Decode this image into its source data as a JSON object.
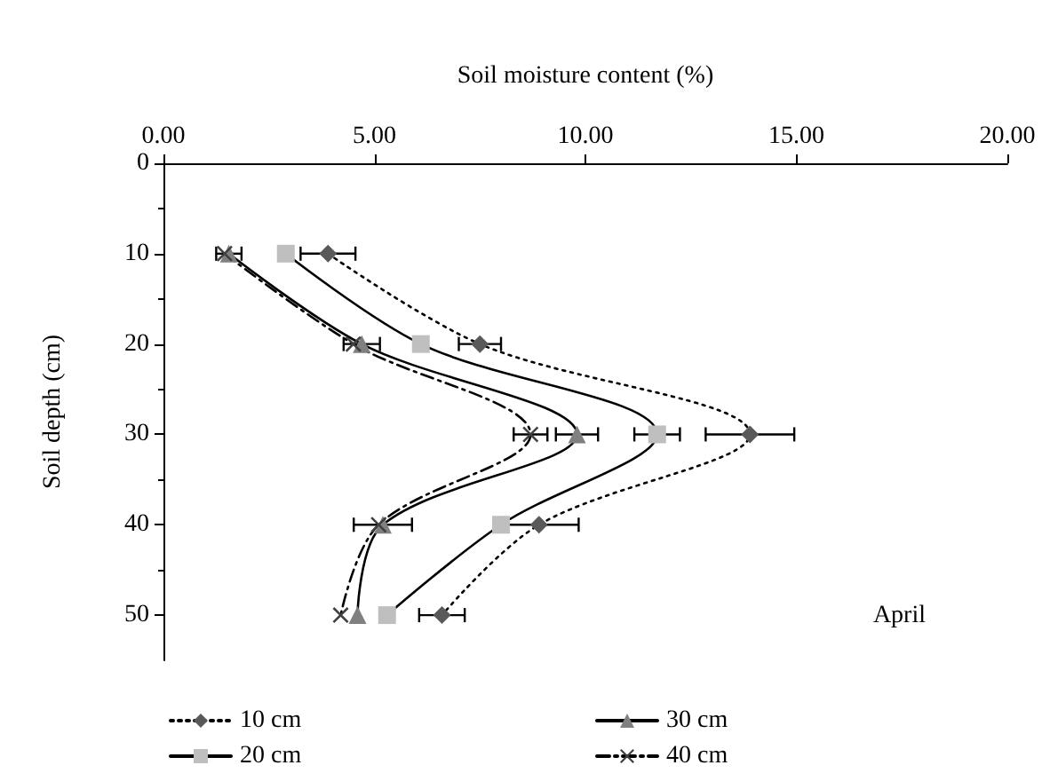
{
  "chart_data": {
    "type": "line",
    "xlabel": "Soil moisture content (%)",
    "ylabel": "Soil depth (cm)",
    "xlim": [
      0,
      20
    ],
    "xticks": [
      {
        "value": 0,
        "label": "0.00"
      },
      {
        "value": 5,
        "label": "5.00"
      },
      {
        "value": 10,
        "label": "10.00"
      },
      {
        "value": 15,
        "label": "15.00"
      },
      {
        "value": 20,
        "label": "20.00"
      }
    ],
    "ylim": [
      55,
      0
    ],
    "yticks": [
      0,
      10,
      20,
      30,
      40,
      50
    ],
    "grid": false,
    "legend": "bottom",
    "annotations": [
      "April"
    ],
    "series": [
      {
        "name": "10 cm",
        "color": "#595959",
        "marker": "diamond",
        "line_style": "dotted",
        "x": [
          3.9,
          7.5,
          13.9,
          8.9,
          6.6
        ],
        "values": [
          10,
          20,
          30,
          40,
          50
        ],
        "xerrors": [
          0.65,
          0.5,
          1.05,
          0.94,
          0.54
        ]
      },
      {
        "name": "20 cm",
        "color": "#bfbfbf",
        "marker": "square",
        "line_style": "solid",
        "x": [
          2.9,
          6.1,
          11.7,
          8.0,
          5.3
        ],
        "values": [
          10,
          20,
          30,
          40,
          50
        ],
        "xerrors": [
          null,
          null,
          0.54,
          null,
          null
        ]
      },
      {
        "name": "30 cm",
        "color": "#808080",
        "marker": "triangle",
        "line_style": "solid",
        "x": [
          1.55,
          4.7,
          9.8,
          5.2,
          4.6
        ],
        "values": [
          10,
          20,
          30,
          40,
          50
        ],
        "xerrors": [
          0.3,
          0.43,
          0.5,
          0.69,
          null
        ]
      },
      {
        "name": "40 cm",
        "color": "#404040",
        "marker": "cross",
        "line_style": "dashed",
        "x": [
          1.45,
          4.5,
          8.7,
          5.1,
          4.2
        ],
        "values": [
          10,
          20,
          30,
          40,
          50
        ],
        "xerrors": [
          null,
          null,
          0.4,
          null,
          null
        ]
      }
    ]
  }
}
